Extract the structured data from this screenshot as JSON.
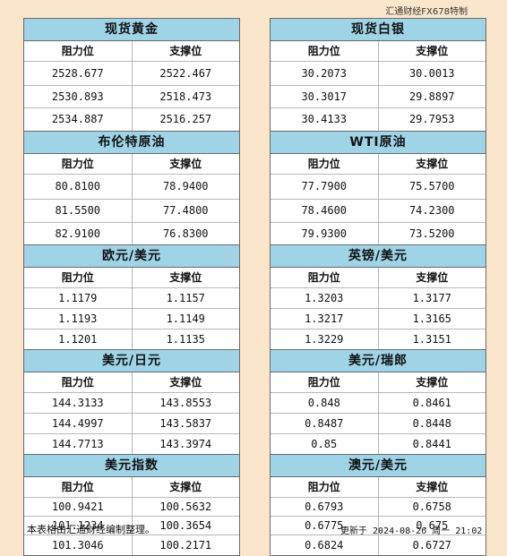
{
  "source": "汇通财经FX678特制",
  "header_labels": {
    "resistance": "阻力位",
    "support": "支撑位"
  },
  "left": [
    {
      "title": "现货黄金",
      "rows": [
        [
          "2528.677",
          "2522.467"
        ],
        [
          "2530.893",
          "2518.473"
        ],
        [
          "2534.887",
          "2516.257"
        ]
      ]
    },
    {
      "title": "布伦特原油",
      "rows": [
        [
          "80.8100",
          "78.9400"
        ],
        [
          "81.5500",
          "77.4800"
        ],
        [
          "82.9100",
          "76.8300"
        ]
      ]
    },
    {
      "title": "欧元/美元",
      "rows": [
        [
          "1.1179",
          "1.1157"
        ],
        [
          "1.1193",
          "1.1149"
        ],
        [
          "1.1201",
          "1.1135"
        ]
      ]
    },
    {
      "title": "美元/日元",
      "rows": [
        [
          "144.3133",
          "143.8553"
        ],
        [
          "144.4997",
          "143.5837"
        ],
        [
          "144.7713",
          "143.3974"
        ]
      ]
    },
    {
      "title": "美元指数",
      "rows": [
        [
          "100.9421",
          "100.5632"
        ],
        [
          "101.1234",
          "100.3654"
        ],
        [
          "101.3046",
          "100.2171"
        ]
      ]
    }
  ],
  "right": [
    {
      "title": "现货白银",
      "rows": [
        [
          "30.2073",
          "30.0013"
        ],
        [
          "30.3017",
          "29.8897"
        ],
        [
          "30.4133",
          "29.7953"
        ]
      ]
    },
    {
      "title": "WTI原油",
      "rows": [
        [
          "77.7900",
          "75.5700"
        ],
        [
          "78.4600",
          "74.2300"
        ],
        [
          "79.9300",
          "73.5200"
        ]
      ]
    },
    {
      "title": "英镑/美元",
      "rows": [
        [
          "1.3203",
          "1.3177"
        ],
        [
          "1.3217",
          "1.3165"
        ],
        [
          "1.3229",
          "1.3151"
        ]
      ]
    },
    {
      "title": "美元/瑞郎",
      "rows": [
        [
          "0.848",
          "0.8461"
        ],
        [
          "0.8487",
          "0.8448"
        ],
        [
          "0.85",
          "0.8441"
        ]
      ]
    },
    {
      "title": "澳元/美元",
      "rows": [
        [
          "0.6793",
          "0.6758"
        ],
        [
          "0.6775",
          "0.675"
        ],
        [
          "0.6824",
          "0.6727"
        ]
      ]
    }
  ],
  "footer": {
    "note": "本表格由汇通财经编制整理。",
    "updated": "更新于 2024-08-26 周一 21:02"
  }
}
